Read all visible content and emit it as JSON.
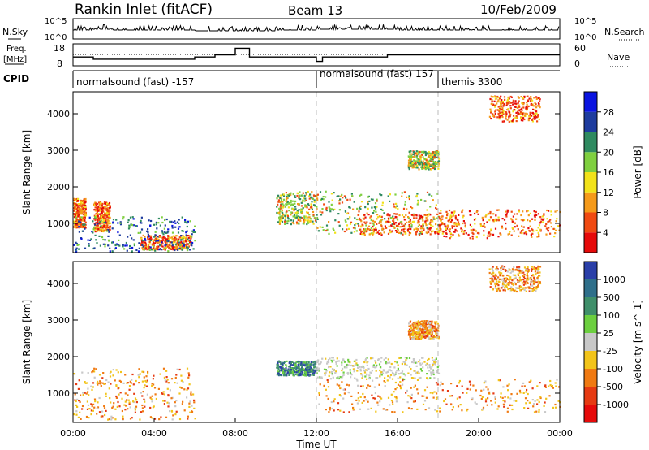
{
  "header": {
    "title": "Rankin Inlet (fitACF)",
    "beam": "Beam 13",
    "date": "10/Feb/2009"
  },
  "noise_panel": {
    "left_label": "N.Sky",
    "right_label": "N.Search",
    "left_ticks": [
      "10^5",
      "10^0"
    ],
    "right_ticks": [
      "10^5",
      "10^0"
    ]
  },
  "freq_panel": {
    "left_label_1": "Freq.",
    "left_label_2": "[MHz]",
    "right_label": "Nave",
    "left_ticks": [
      "18",
      "8"
    ],
    "right_ticks": [
      "60",
      "0"
    ]
  },
  "cpid_panel": {
    "label": "CPID",
    "segments": [
      {
        "text": "normalsound (fast) -157",
        "start_hour": 0
      },
      {
        "text": "normalsound (fast) 157",
        "start_hour": 12
      },
      {
        "text": "themis 3300",
        "start_hour": 18
      }
    ]
  },
  "x_axis": {
    "label": "Time UT",
    "ticks": [
      "00:00",
      "04:00",
      "08:00",
      "12:00",
      "16:00",
      "20:00",
      "00:00"
    ]
  },
  "power_panel": {
    "ylabel": "Slant Range [km]",
    "yticks": [
      "4000",
      "3000",
      "2000",
      "1000"
    ],
    "colorbar_label": "Power [dB]",
    "colorbar_ticks": [
      "28",
      "24",
      "20",
      "16",
      "12",
      "8",
      "4"
    ],
    "colors": [
      "#0a14e0",
      "#1e3c9e",
      "#2f8a60",
      "#7fcf3f",
      "#f2e21a",
      "#f59a1a",
      "#f04a12",
      "#e60a0a"
    ]
  },
  "velocity_panel": {
    "ylabel": "Slant Range [km]",
    "yticks": [
      "4000",
      "3000",
      "2000",
      "1000"
    ],
    "colorbar_label": "Velocity [m s^-1]",
    "colorbar_ticks": [
      "1000",
      "500",
      "100",
      "25",
      "-25",
      "-100",
      "-500",
      "-1000"
    ],
    "colors": [
      "#2a3fa8",
      "#2f6f8a",
      "#3f8f6a",
      "#6ccf3f",
      "#c8c8c8",
      "#f2c41a",
      "#f07a12",
      "#e63a12",
      "#e60a0a"
    ]
  },
  "chart_data": {
    "type": "heatmap",
    "x_unit": "hours UT",
    "x_range": [
      0,
      24
    ],
    "y_unit": "km",
    "y_range": [
      200,
      4600
    ],
    "noise_sky_profile": [
      [
        0,
        4
      ],
      [
        1,
        5
      ],
      [
        2,
        4
      ],
      [
        4,
        4
      ],
      [
        6,
        3
      ],
      [
        8,
        3
      ],
      [
        10,
        4
      ],
      [
        12,
        5
      ],
      [
        14,
        5
      ],
      [
        16,
        4
      ],
      [
        18,
        4
      ],
      [
        20,
        4
      ],
      [
        22,
        4
      ],
      [
        24,
        4
      ]
    ],
    "frequency_mhz": [
      [
        0,
        12
      ],
      [
        1,
        11
      ],
      [
        6,
        12
      ],
      [
        7,
        13
      ],
      [
        8,
        16
      ],
      [
        8.7,
        12
      ],
      [
        12,
        10
      ],
      [
        12.3,
        12
      ],
      [
        15.5,
        13
      ],
      [
        22,
        13
      ],
      [
        24,
        13
      ]
    ],
    "power_regions": [
      {
        "t0": 0.0,
        "t1": 0.6,
        "r0": 900,
        "r1": 1700,
        "level": "high"
      },
      {
        "t0": 1.0,
        "t1": 1.8,
        "r0": 800,
        "r1": 1600,
        "level": "high"
      },
      {
        "t0": 3.3,
        "t1": 5.8,
        "r0": 300,
        "r1": 700,
        "level": "high"
      },
      {
        "t0": 0.0,
        "t1": 6.0,
        "r0": 250,
        "r1": 1200,
        "level": "low"
      },
      {
        "t0": 10.0,
        "t1": 12.0,
        "r0": 1000,
        "r1": 1900,
        "level": "mid"
      },
      {
        "t0": 12.0,
        "t1": 18.0,
        "r0": 700,
        "r1": 1900,
        "level": "mid"
      },
      {
        "t0": 14.0,
        "t1": 19.0,
        "r0": 700,
        "r1": 1300,
        "level": "high"
      },
      {
        "t0": 18.0,
        "t1": 24.0,
        "r0": 600,
        "r1": 1400,
        "level": "high"
      },
      {
        "t0": 16.5,
        "t1": 18.0,
        "r0": 2500,
        "r1": 3000,
        "level": "mid"
      },
      {
        "t0": 20.5,
        "t1": 23.0,
        "r0": 3800,
        "r1": 4500,
        "level": "high"
      }
    ],
    "velocity_regions": [
      {
        "t0": 0.0,
        "t1": 6.0,
        "r0": 300,
        "r1": 1700,
        "level": "negative"
      },
      {
        "t0": 10.0,
        "t1": 12.0,
        "r0": 1500,
        "r1": 1900,
        "level": "positive"
      },
      {
        "t0": 12.0,
        "t1": 18.0,
        "r0": 1400,
        "r1": 2000,
        "level": "near-zero"
      },
      {
        "t0": 12.0,
        "t1": 24.0,
        "r0": 500,
        "r1": 1400,
        "level": "negative"
      },
      {
        "t0": 16.5,
        "t1": 18.0,
        "r0": 2500,
        "r1": 3000,
        "level": "negative"
      },
      {
        "t0": 20.5,
        "t1": 23.0,
        "r0": 3800,
        "r1": 4500,
        "level": "negative"
      }
    ]
  }
}
